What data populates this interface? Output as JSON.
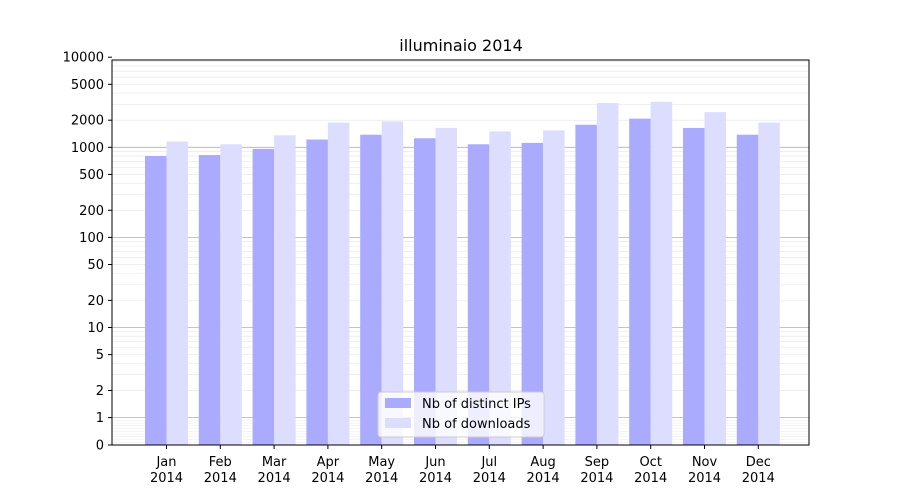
{
  "chart_data": {
    "type": "bar",
    "title": "illuminaio 2014",
    "xlabel": "",
    "ylabel": "",
    "yscale": "symlog",
    "ylim": [
      0,
      15000
    ],
    "categories": [
      [
        "Jan",
        "2014"
      ],
      [
        "Feb",
        "2014"
      ],
      [
        "Mar",
        "2014"
      ],
      [
        "Apr",
        "2014"
      ],
      [
        "May",
        "2014"
      ],
      [
        "Jun",
        "2014"
      ],
      [
        "Jul",
        "2014"
      ],
      [
        "Aug",
        "2014"
      ],
      [
        "Sep",
        "2014"
      ],
      [
        "Oct",
        "2014"
      ],
      [
        "Nov",
        "2014"
      ],
      [
        "Dec",
        "2014"
      ]
    ],
    "series": [
      {
        "name": "Nb of distinct IPs",
        "color": "#aaaaff",
        "values": [
          800,
          820,
          960,
          1220,
          1380,
          1260,
          1080,
          1120,
          1780,
          2080,
          1640,
          1380
        ]
      },
      {
        "name": "Nb of downloads",
        "color": "#ddddff",
        "values": [
          1160,
          1080,
          1360,
          1880,
          1940,
          1640,
          1500,
          1540,
          3100,
          3200,
          2460,
          1880
        ]
      }
    ],
    "yticks": [
      "0",
      "1",
      "2",
      "5",
      "10",
      "20",
      "50",
      "100",
      "200",
      "500",
      "1000",
      "2000",
      "5000",
      "10000"
    ],
    "grid": true,
    "legend_position": "bottom-center"
  }
}
